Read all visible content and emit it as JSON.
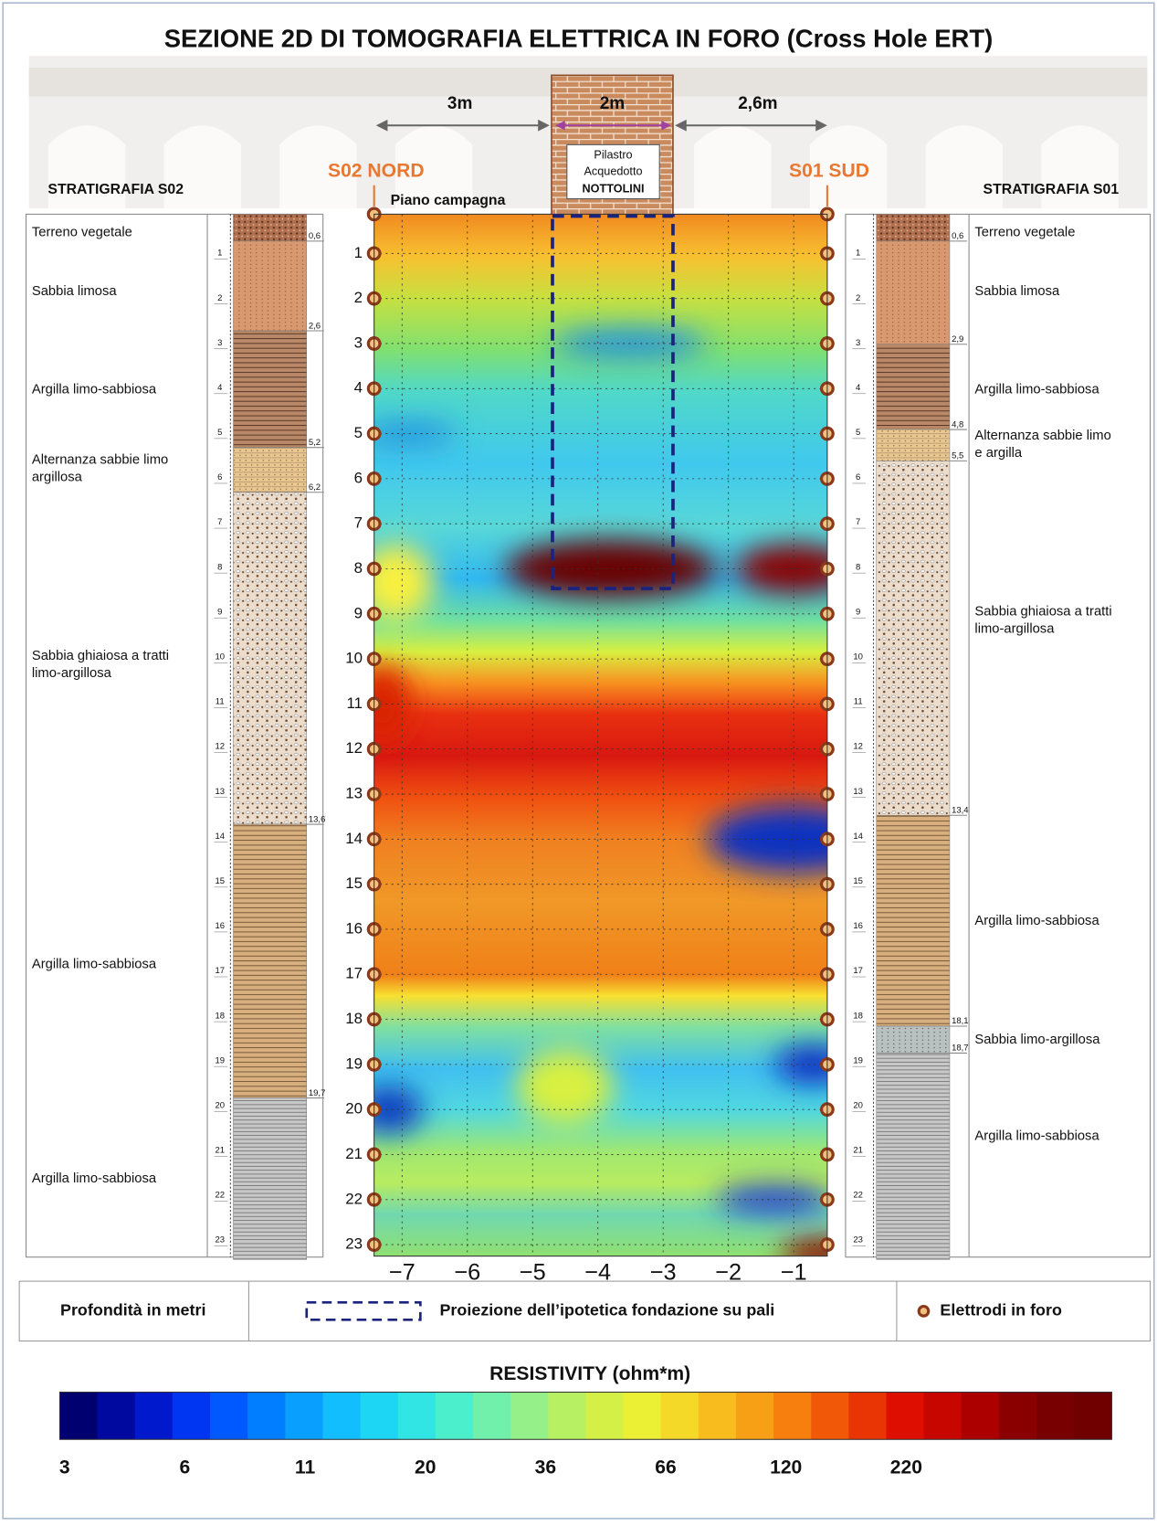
{
  "title": "SEZIONE 2D DI TOMOGRAFIA ELETTRICA IN FORO (Cross Hole ERT)",
  "dimensions": [
    "3m",
    "2m",
    "2,6m"
  ],
  "pillar": {
    "lines": [
      "Pilastro",
      "Acquedotto",
      "NOTTOLINI"
    ]
  },
  "boreholes": {
    "left": "S02 NORD",
    "right": "S01 SUD"
  },
  "ground_label": "Piano campagna",
  "section": {
    "depth_ticks": [
      1,
      2,
      3,
      4,
      5,
      6,
      7,
      8,
      9,
      10,
      11,
      12,
      13,
      14,
      15,
      16,
      17,
      18,
      19,
      20,
      21,
      22,
      23
    ],
    "x_ticks": [
      {
        "value": -7,
        "label": "−7"
      },
      {
        "value": -6,
        "label": "−6"
      },
      {
        "value": -5,
        "label": "−5"
      },
      {
        "value": -4,
        "label": "−4"
      },
      {
        "value": -3,
        "label": "−3"
      },
      {
        "value": -2,
        "label": "−2"
      },
      {
        "value": -1,
        "label": "−1"
      }
    ]
  },
  "strat_left": {
    "title": "STRATIGRAFIA S02",
    "layers": [
      {
        "lines": [
          "Terreno vegetale"
        ]
      },
      {
        "lines": [
          "Sabbia limosa"
        ]
      },
      {
        "lines": [
          "Argilla limo-sabbiosa"
        ]
      },
      {
        "lines": [
          "Alternanza sabbie limo",
          "argillosa"
        ]
      },
      {
        "lines": [
          "Sabbia ghiaiosa a tratti",
          "limo-argillosa"
        ]
      },
      {
        "lines": [
          "Argilla limo-sabbiosa"
        ]
      },
      {
        "lines": [
          "Argilla limo-sabbiosa"
        ]
      }
    ],
    "boundaries": [
      {
        "value": 0.6,
        "label": "0,6"
      },
      {
        "value": 2.6,
        "label": "2,6"
      },
      {
        "value": 5.2,
        "label": "5,2"
      },
      {
        "value": 6.2,
        "label": "6,2"
      },
      {
        "value": 13.6,
        "label": "13,6"
      },
      {
        "value": 19.7,
        "label": "19,7"
      }
    ]
  },
  "strat_right": {
    "title": "STRATIGRAFIA S01",
    "layers": [
      {
        "lines": [
          "Terreno vegetale"
        ]
      },
      {
        "lines": [
          "Sabbia limosa"
        ]
      },
      {
        "lines": [
          "Argilla limo-sabbiosa"
        ]
      },
      {
        "lines": [
          "Alternanza sabbie limo",
          "e argilla"
        ]
      },
      {
        "lines": [
          "Sabbia ghiaiosa a tratti",
          "limo-argillosa"
        ]
      },
      {
        "lines": [
          "Argilla limo-sabbiosa"
        ]
      },
      {
        "lines": [
          "Sabbia limo-argillosa"
        ]
      },
      {
        "lines": [
          "Argilla limo-sabbiosa"
        ]
      }
    ],
    "boundaries": [
      {
        "value": 0.6,
        "label": "0,6"
      },
      {
        "value": 2.9,
        "label": "2,9"
      },
      {
        "value": 4.8,
        "label": "4,8"
      },
      {
        "value": 5.5,
        "label": "5,5"
      },
      {
        "value": 13.4,
        "label": "13,4"
      },
      {
        "value": 18.1,
        "label": "18,1"
      },
      {
        "value": 18.7,
        "label": "18,7"
      }
    ]
  },
  "legend": {
    "depth": "Profondità in metri",
    "foundation": "Proiezione dell’ipotetica fondazione su pali",
    "electrodes": "Elettrodi in foro"
  },
  "colorbar": {
    "title": "RESISTIVITY (ohm*m)",
    "ticks": [
      3,
      6,
      11,
      20,
      36,
      66,
      120,
      220
    ]
  }
}
